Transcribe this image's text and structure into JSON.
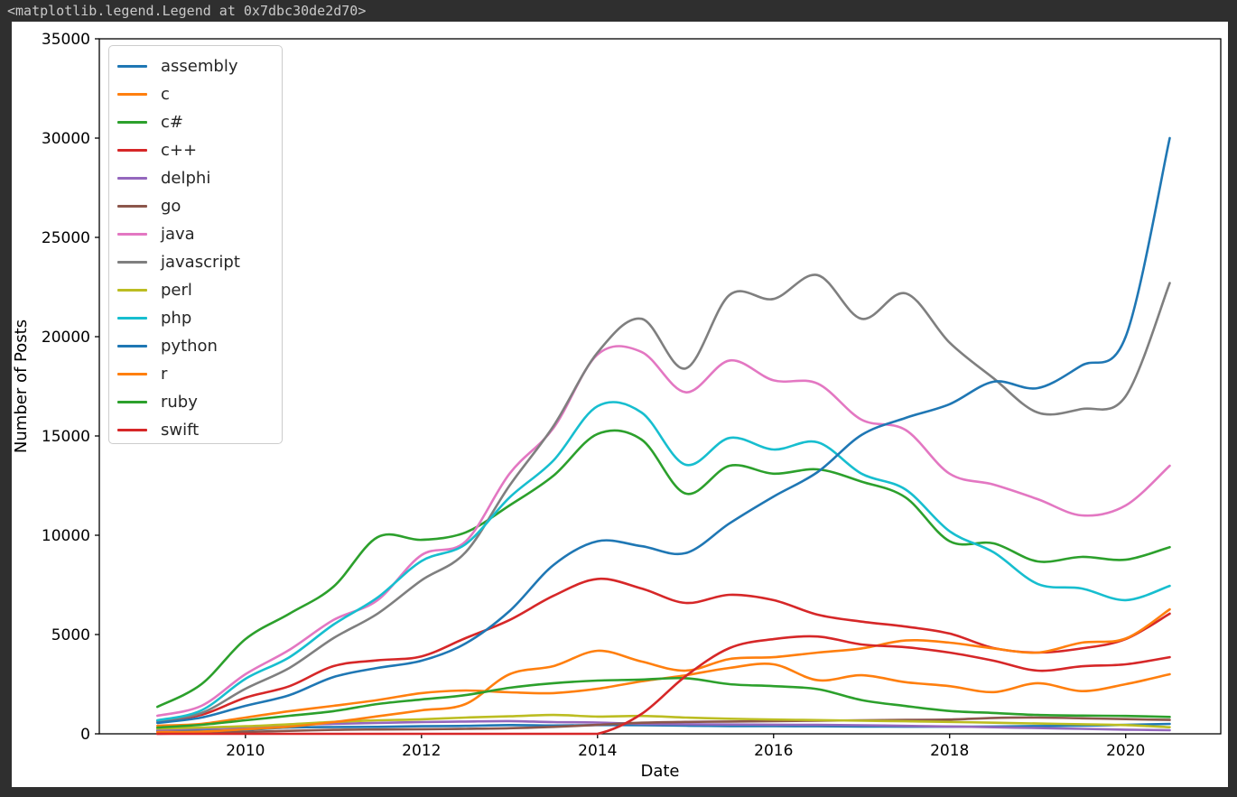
{
  "header": {
    "title": "<matplotlib.legend.Legend at 0x7dbc30de2d70>"
  },
  "colors": {
    "background": "#2f2f2f",
    "figure_background": "#ffffff",
    "header_text": "#c9c9c9",
    "axis": "#000000",
    "legend_border": "#cccccc"
  },
  "chart_data": {
    "type": "line",
    "title": "",
    "xlabel": "Date",
    "ylabel": "Number of Posts",
    "xlim": [
      2008.34,
      2021.08
    ],
    "ylim": [
      0,
      35000
    ],
    "x_ticks": [
      2010,
      2012,
      2014,
      2016,
      2018,
      2020
    ],
    "y_ticks": [
      0,
      5000,
      10000,
      15000,
      20000,
      25000,
      30000,
      35000
    ],
    "grid": false,
    "legend_position": "upper left",
    "x": [
      2009.0,
      2009.5,
      2010.0,
      2010.5,
      2011.0,
      2011.5,
      2012.0,
      2012.5,
      2013.0,
      2013.5,
      2014.0,
      2014.5,
      2015.0,
      2015.5,
      2016.0,
      2016.5,
      2017.0,
      2017.5,
      2018.0,
      2018.5,
      2019.0,
      2019.5,
      2020.0,
      2020.5
    ],
    "series": [
      {
        "name": "assembly",
        "color": "#1f77b4",
        "values": [
          140,
          160,
          200,
          320,
          340,
          350,
          380,
          400,
          440,
          420,
          440,
          430,
          410,
          390,
          390,
          380,
          370,
          360,
          360,
          370,
          390,
          410,
          450,
          500
        ]
      },
      {
        "name": "c",
        "color": "#ff7f0e",
        "values": [
          410,
          500,
          820,
          1140,
          1410,
          1700,
          2050,
          2180,
          2090,
          2050,
          2270,
          2640,
          2950,
          3320,
          3500,
          2700,
          2950,
          2600,
          2400,
          2100,
          2550,
          2150,
          2500,
          3000
        ]
      },
      {
        "name": "c#",
        "color": "#2ca02c",
        "values": [
          1360,
          2500,
          4770,
          6050,
          7410,
          9900,
          9770,
          10140,
          11500,
          13000,
          15100,
          14820,
          12100,
          13500,
          13100,
          13320,
          12700,
          11900,
          9700,
          9590,
          8680,
          8910,
          8770,
          9400
        ]
      },
      {
        "name": "c++",
        "color": "#d62728",
        "values": [
          640,
          955,
          1820,
          2400,
          3410,
          3700,
          3900,
          4820,
          5730,
          6950,
          7800,
          7320,
          6590,
          7000,
          6730,
          6000,
          5650,
          5400,
          5050,
          4320,
          4090,
          4300,
          4770,
          6050
        ]
      },
      {
        "name": "delphi",
        "color": "#9467bd",
        "values": [
          200,
          270,
          320,
          450,
          500,
          550,
          590,
          620,
          640,
          590,
          570,
          500,
          480,
          470,
          460,
          450,
          430,
          400,
          370,
          330,
          290,
          250,
          210,
          180
        ]
      },
      {
        "name": "go",
        "color": "#8c564b",
        "values": [
          0,
          40,
          90,
          150,
          200,
          220,
          230,
          250,
          280,
          350,
          450,
          560,
          600,
          620,
          640,
          660,
          680,
          700,
          720,
          800,
          820,
          780,
          740,
          700
        ]
      },
      {
        "name": "java",
        "color": "#e377c2",
        "values": [
          910,
          1410,
          3000,
          4230,
          5730,
          6730,
          9000,
          9680,
          13100,
          15400,
          19100,
          19230,
          17200,
          18800,
          17800,
          17640,
          15820,
          15300,
          13100,
          12550,
          11820,
          11000,
          11500,
          13500
        ]
      },
      {
        "name": "javascript",
        "color": "#7f7f7f",
        "values": [
          650,
          1045,
          2270,
          3320,
          4820,
          6050,
          7730,
          9140,
          12500,
          15500,
          19200,
          20900,
          18400,
          22100,
          21900,
          23100,
          20900,
          22180,
          19700,
          17900,
          16180,
          16360,
          17000,
          22700
        ]
      },
      {
        "name": "perl",
        "color": "#bcbd22",
        "values": [
          270,
          320,
          380,
          480,
          600,
          680,
          730,
          820,
          880,
          950,
          870,
          900,
          820,
          760,
          720,
          690,
          660,
          630,
          600,
          560,
          520,
          480,
          440,
          330
        ]
      },
      {
        "name": "php",
        "color": "#17becf",
        "values": [
          680,
          1180,
          2770,
          3860,
          5500,
          6860,
          8700,
          9550,
          11900,
          13770,
          16500,
          16180,
          13550,
          14900,
          14320,
          14680,
          13100,
          12300,
          10200,
          9140,
          7550,
          7320,
          6730,
          7450
        ]
      },
      {
        "name": "python",
        "color": "#1f77b4",
        "values": [
          550,
          820,
          1410,
          1950,
          2860,
          3320,
          3680,
          4550,
          6180,
          8500,
          9700,
          9450,
          9100,
          10600,
          11950,
          13180,
          15050,
          15910,
          16600,
          17730,
          17410,
          18550,
          20000,
          30000
        ]
      },
      {
        "name": "r",
        "color": "#ff7f0e",
        "values": [
          90,
          115,
          230,
          360,
          590,
          880,
          1180,
          1500,
          3000,
          3410,
          4180,
          3640,
          3180,
          3770,
          3860,
          4090,
          4300,
          4700,
          4590,
          4300,
          4090,
          4590,
          4800,
          6270
        ]
      },
      {
        "name": "ruby",
        "color": "#2ca02c",
        "values": [
          320,
          455,
          680,
          910,
          1140,
          1500,
          1730,
          1950,
          2320,
          2550,
          2680,
          2730,
          2800,
          2500,
          2400,
          2250,
          1700,
          1400,
          1150,
          1050,
          950,
          920,
          900,
          850
        ]
      },
      {
        "name": "swift",
        "color": "#d62728",
        "values": [
          0,
          0,
          0,
          0,
          0,
          0,
          0,
          0,
          0,
          0,
          0,
          1000,
          2900,
          4320,
          4770,
          4900,
          4500,
          4360,
          4090,
          3680,
          3180,
          3400,
          3500,
          3860
        ]
      }
    ]
  }
}
